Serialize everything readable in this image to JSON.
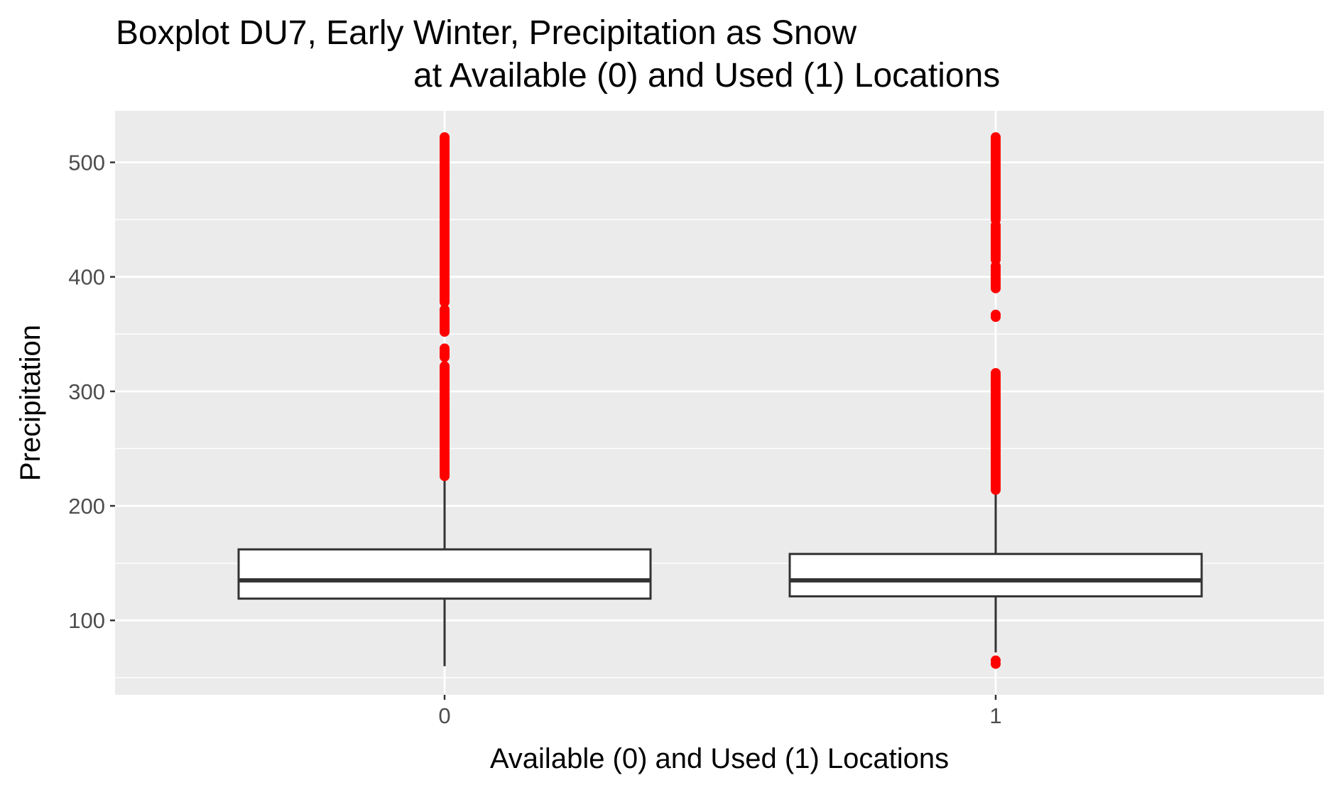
{
  "chart_data": {
    "type": "boxplot",
    "title_lines": [
      "Boxplot DU7, Early Winter, Precipitation as Snow",
      "at Available (0) and Used (1) Locations"
    ],
    "xlabel": "Available (0) and Used (1) Locations",
    "ylabel": "Precipitation",
    "categories": [
      "0",
      "1"
    ],
    "ylim": [
      35,
      545
    ],
    "yticks": [
      100,
      200,
      300,
      400,
      500
    ],
    "grid": true,
    "panel_background": "#ebebeb",
    "grid_color": "#ffffff",
    "outlier_color": "#ff0000",
    "box_fill": "#ffffff",
    "box_line": "#333333",
    "boxes": [
      {
        "category": "0",
        "whisker_low": 60,
        "q1": 119,
        "median": 135,
        "q3": 162,
        "whisker_high": 225,
        "outlier_ranges": [
          [
            226,
            322
          ],
          [
            330,
            338
          ],
          [
            352,
            372
          ],
          [
            378,
            522
          ]
        ],
        "outliers": []
      },
      {
        "category": "1",
        "whisker_low": 72,
        "q1": 121,
        "median": 135,
        "q3": 158,
        "whisker_high": 213,
        "outlier_ranges": [
          [
            214,
            316
          ],
          [
            390,
            410
          ],
          [
            415,
            445
          ],
          [
            450,
            522
          ]
        ],
        "outliers": [
          62,
          65,
          365,
          367
        ]
      }
    ]
  }
}
